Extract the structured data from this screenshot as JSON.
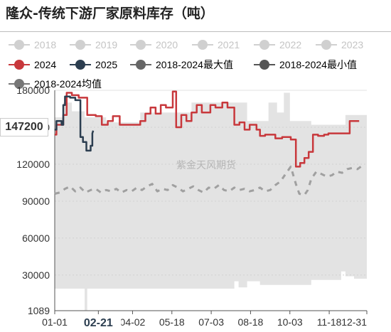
{
  "title": "隆众-传统下游厂家原料库存（吨）",
  "watermark": "紫金天风期货",
  "last_value_label": "147200",
  "highlight_x_label": "02-21",
  "legend": [
    {
      "name": "2018",
      "color": "#d0d0d0",
      "faded": true
    },
    {
      "name": "2019",
      "color": "#d0d0d0",
      "faded": true
    },
    {
      "name": "2020",
      "color": "#d0d0d0",
      "faded": true
    },
    {
      "name": "2021",
      "color": "#d0d0d0",
      "faded": true
    },
    {
      "name": "2022",
      "color": "#d0d0d0",
      "faded": true
    },
    {
      "name": "2023",
      "color": "#d0d0d0",
      "faded": true
    },
    {
      "name": "2024",
      "color": "#c8383c",
      "faded": false
    },
    {
      "name": "2025",
      "color": "#2c3e50",
      "faded": false
    },
    {
      "name": "2018-2024最大值",
      "color": "#666666",
      "faded": false
    },
    {
      "name": "2018-2024最小值",
      "color": "#555555",
      "faded": false
    },
    {
      "name": "2018-2024均值",
      "color": "#777777",
      "faded": false
    }
  ],
  "chart_data": {
    "type": "line",
    "title": "隆众-传统下游厂家原料库存（吨）",
    "x_range_days": [
      0,
      365
    ],
    "ylim": [
      1089,
      180000
    ],
    "y_ticks": [
      1089,
      30000,
      60000,
      90000,
      120000,
      150000,
      180000
    ],
    "y_tick_labels": [
      "1089",
      "30000",
      "60000",
      "90000",
      "120000",
      "150000",
      "180000"
    ],
    "x_tick_labels": [
      "01-01",
      "02-21",
      "04-02",
      "05-18",
      "07-03",
      "08-18",
      "10-03",
      "11-18",
      "12-31"
    ],
    "x_tick_days": [
      0,
      51,
      91,
      137,
      183,
      229,
      275,
      321,
      365
    ],
    "band_max": [
      [
        0,
        158000
      ],
      [
        10,
        158000
      ],
      [
        10,
        170000
      ],
      [
        20,
        170000
      ],
      [
        20,
        163000
      ],
      [
        35,
        163000
      ],
      [
        35,
        158000
      ],
      [
        60,
        158000
      ],
      [
        60,
        154000
      ],
      [
        100,
        154000
      ],
      [
        100,
        162000
      ],
      [
        160,
        162000
      ],
      [
        160,
        170000
      ],
      [
        225,
        170000
      ],
      [
        225,
        155000
      ],
      [
        250,
        155000
      ],
      [
        250,
        170000
      ],
      [
        260,
        170000
      ],
      [
        260,
        162000
      ],
      [
        268,
        162000
      ],
      [
        268,
        178000
      ],
      [
        275,
        178000
      ],
      [
        275,
        155000
      ],
      [
        300,
        155000
      ],
      [
        300,
        152000
      ],
      [
        340,
        152000
      ],
      [
        340,
        160000
      ],
      [
        365,
        160000
      ]
    ],
    "band_min": [
      [
        0,
        19000
      ],
      [
        35,
        19000
      ],
      [
        35,
        1089
      ],
      [
        38,
        1089
      ],
      [
        38,
        19000
      ],
      [
        210,
        19000
      ],
      [
        210,
        25000
      ],
      [
        215,
        25000
      ],
      [
        215,
        20000
      ],
      [
        225,
        20000
      ],
      [
        225,
        25000
      ],
      [
        240,
        25000
      ],
      [
        240,
        22000
      ],
      [
        300,
        22000
      ],
      [
        300,
        26000
      ],
      [
        335,
        26000
      ],
      [
        335,
        33000
      ],
      [
        340,
        33000
      ],
      [
        340,
        29000
      ],
      [
        350,
        29000
      ],
      [
        350,
        27000
      ],
      [
        365,
        27000
      ]
    ],
    "series": [
      {
        "name": "2024",
        "color": "#c8383c",
        "points": [
          [
            0,
            144000
          ],
          [
            2,
            144000
          ],
          [
            2,
            152000
          ],
          [
            10,
            152000
          ],
          [
            10,
            160000
          ],
          [
            14,
            160000
          ],
          [
            14,
            178000
          ],
          [
            20,
            178000
          ],
          [
            20,
            176000
          ],
          [
            28,
            176000
          ],
          [
            28,
            174000
          ],
          [
            38,
            174000
          ],
          [
            38,
            160000
          ],
          [
            48,
            160000
          ],
          [
            48,
            159000
          ],
          [
            55,
            159000
          ],
          [
            55,
            152000
          ],
          [
            62,
            152000
          ],
          [
            62,
            155000
          ],
          [
            68,
            155000
          ],
          [
            68,
            159000
          ],
          [
            76,
            159000
          ],
          [
            76,
            152000
          ],
          [
            84,
            152000
          ],
          [
            84,
            152000
          ],
          [
            100,
            152000
          ],
          [
            100,
            155000
          ],
          [
            106,
            155000
          ],
          [
            106,
            161000
          ],
          [
            112,
            161000
          ],
          [
            112,
            166000
          ],
          [
            118,
            166000
          ],
          [
            118,
            161000
          ],
          [
            124,
            161000
          ],
          [
            124,
            168000
          ],
          [
            130,
            168000
          ],
          [
            130,
            166000
          ],
          [
            138,
            166000
          ],
          [
            138,
            179000
          ],
          [
            142,
            179000
          ],
          [
            142,
            150000
          ],
          [
            148,
            150000
          ],
          [
            148,
            160000
          ],
          [
            154,
            160000
          ],
          [
            154,
            155000
          ],
          [
            160,
            155000
          ],
          [
            160,
            162000
          ],
          [
            166,
            162000
          ],
          [
            166,
            168000
          ],
          [
            172,
            168000
          ],
          [
            172,
            162000
          ],
          [
            182,
            162000
          ],
          [
            182,
            168000
          ],
          [
            188,
            168000
          ],
          [
            188,
            166000
          ],
          [
            196,
            166000
          ],
          [
            196,
            170000
          ],
          [
            202,
            170000
          ],
          [
            202,
            166000
          ],
          [
            210,
            166000
          ],
          [
            210,
            152000
          ],
          [
            216,
            152000
          ],
          [
            216,
            154000
          ],
          [
            222,
            154000
          ],
          [
            222,
            148000
          ],
          [
            228,
            148000
          ],
          [
            228,
            152000
          ],
          [
            236,
            152000
          ],
          [
            236,
            148000
          ],
          [
            240,
            148000
          ],
          [
            240,
            143000
          ],
          [
            246,
            143000
          ],
          [
            246,
            144000
          ],
          [
            258,
            144000
          ],
          [
            258,
            141000
          ],
          [
            266,
            141000
          ],
          [
            266,
            142000
          ],
          [
            276,
            142000
          ],
          [
            276,
            140000
          ],
          [
            282,
            140000
          ],
          [
            282,
            118000
          ],
          [
            287,
            118000
          ],
          [
            287,
            121000
          ],
          [
            292,
            121000
          ],
          [
            292,
            125000
          ],
          [
            297,
            125000
          ],
          [
            297,
            130000
          ],
          [
            302,
            130000
          ],
          [
            302,
            144000
          ],
          [
            308,
            144000
          ],
          [
            308,
            143000
          ],
          [
            315,
            143000
          ],
          [
            315,
            144000
          ],
          [
            320,
            144000
          ],
          [
            320,
            145000
          ],
          [
            345,
            145000
          ],
          [
            345,
            155000
          ],
          [
            356,
            155000
          ]
        ]
      },
      {
        "name": "2025",
        "color": "#2c3e50",
        "points": [
          [
            0,
            148000
          ],
          [
            2,
            148000
          ],
          [
            2,
            155000
          ],
          [
            8,
            155000
          ],
          [
            8,
            152000
          ],
          [
            10,
            152000
          ],
          [
            10,
            168000
          ],
          [
            12,
            168000
          ],
          [
            12,
            175000
          ],
          [
            18,
            175000
          ],
          [
            18,
            174000
          ],
          [
            24,
            174000
          ],
          [
            24,
            172000
          ],
          [
            30,
            172000
          ],
          [
            30,
            142000
          ],
          [
            33,
            142000
          ],
          [
            33,
            138000
          ],
          [
            37,
            138000
          ],
          [
            37,
            131000
          ],
          [
            42,
            131000
          ],
          [
            42,
            135000
          ],
          [
            44,
            135000
          ],
          [
            44,
            145000
          ],
          [
            45,
            147200
          ]
        ]
      },
      {
        "name": "2018-2024均值",
        "color": "#a0a0a0",
        "dashed": true,
        "points": [
          [
            0,
            96000
          ],
          [
            6,
            97000
          ],
          [
            12,
            100000
          ],
          [
            18,
            102000
          ],
          [
            24,
            98000
          ],
          [
            30,
            101000
          ],
          [
            36,
            97000
          ],
          [
            42,
            99000
          ],
          [
            48,
            100000
          ],
          [
            54,
            97000
          ],
          [
            60,
            99000
          ],
          [
            66,
            98000
          ],
          [
            72,
            100000
          ],
          [
            78,
            97000
          ],
          [
            84,
            99000
          ],
          [
            90,
            98000
          ],
          [
            96,
            101000
          ],
          [
            102,
            99000
          ],
          [
            108,
            102000
          ],
          [
            114,
            104000
          ],
          [
            120,
            98000
          ],
          [
            126,
            100000
          ],
          [
            132,
            99000
          ],
          [
            138,
            103000
          ],
          [
            144,
            101000
          ],
          [
            150,
            98000
          ],
          [
            156,
            100000
          ],
          [
            162,
            102000
          ],
          [
            168,
            99000
          ],
          [
            174,
            97000
          ],
          [
            180,
            101000
          ],
          [
            186,
            100000
          ],
          [
            192,
            103000
          ],
          [
            198,
            99000
          ],
          [
            204,
            98000
          ],
          [
            210,
            101000
          ],
          [
            216,
            99000
          ],
          [
            222,
            100000
          ],
          [
            228,
            98000
          ],
          [
            234,
            99000
          ],
          [
            240,
            101000
          ],
          [
            246,
            98000
          ],
          [
            252,
            99000
          ],
          [
            258,
            103000
          ],
          [
            264,
            106000
          ],
          [
            270,
            112000
          ],
          [
            276,
            118000
          ],
          [
            282,
            104000
          ],
          [
            286,
            96000
          ],
          [
            292,
            95000
          ],
          [
            296,
            99000
          ],
          [
            300,
            108000
          ],
          [
            306,
            114000
          ],
          [
            312,
            112000
          ],
          [
            318,
            110000
          ],
          [
            324,
            111000
          ],
          [
            330,
            114000
          ],
          [
            336,
            113000
          ],
          [
            342,
            116000
          ],
          [
            348,
            117000
          ],
          [
            354,
            116000
          ],
          [
            358,
            118000
          ]
        ]
      }
    ]
  }
}
